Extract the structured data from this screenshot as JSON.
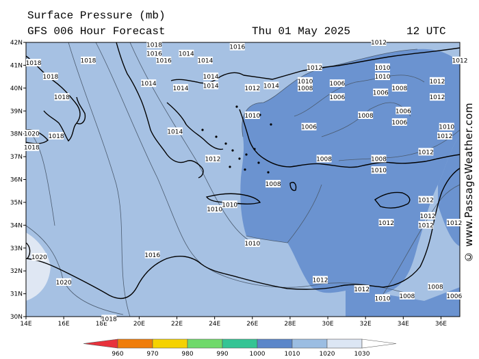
{
  "header": {
    "title": "Surface Pressure (mb)",
    "model": "GFS 006 Hour Forecast",
    "date": "Thu 01 May 2025",
    "time": "12 UTC"
  },
  "watermark": "© www.PassageWeather.com",
  "map": {
    "lon_ticks": [
      "14E",
      "16E",
      "18E",
      "20E",
      "22E",
      "24E",
      "26E",
      "28E",
      "30E",
      "32E",
      "34E",
      "36E"
    ],
    "lat_ticks": [
      "42N",
      "41N",
      "40N",
      "39N",
      "38N",
      "37N",
      "36N",
      "35N",
      "34N",
      "33N",
      "32N",
      "31N",
      "30N"
    ],
    "isobar_labels": [
      {
        "text": "1018",
        "lon": 20.8,
        "lat": 41.9
      },
      {
        "text": "1016",
        "lon": 25.2,
        "lat": 41.8
      },
      {
        "text": "1014",
        "lon": 22.5,
        "lat": 41.5
      },
      {
        "text": "1016",
        "lon": 20.8,
        "lat": 41.5
      },
      {
        "text": "1016",
        "lon": 21.3,
        "lat": 41.2
      },
      {
        "text": "1018",
        "lon": 14.4,
        "lat": 41.1
      },
      {
        "text": "1018",
        "lon": 17.3,
        "lat": 41.2
      },
      {
        "text": "1014",
        "lon": 23.5,
        "lat": 41.2
      },
      {
        "text": "1018",
        "lon": 15.3,
        "lat": 40.5
      },
      {
        "text": "1014",
        "lon": 20.5,
        "lat": 40.2
      },
      {
        "text": "1014",
        "lon": 22.2,
        "lat": 40.0
      },
      {
        "text": "1014",
        "lon": 23.8,
        "lat": 40.5
      },
      {
        "text": "1014",
        "lon": 23.8,
        "lat": 40.1
      },
      {
        "text": "1012",
        "lon": 26.0,
        "lat": 40.0
      },
      {
        "text": "1014",
        "lon": 27.0,
        "lat": 40.1
      },
      {
        "text": "1012",
        "lon": 29.3,
        "lat": 40.9
      },
      {
        "text": "1012",
        "lon": 32.7,
        "lat": 42.0
      },
      {
        "text": "1010",
        "lon": 28.8,
        "lat": 40.3
      },
      {
        "text": "1008",
        "lon": 28.8,
        "lat": 40.0
      },
      {
        "text": "1006",
        "lon": 30.5,
        "lat": 40.2
      },
      {
        "text": "1010",
        "lon": 32.9,
        "lat": 40.9
      },
      {
        "text": "1010",
        "lon": 32.9,
        "lat": 40.5
      },
      {
        "text": "1008",
        "lon": 33.8,
        "lat": 40.0
      },
      {
        "text": "1006",
        "lon": 32.8,
        "lat": 39.8
      },
      {
        "text": "1012",
        "lon": 35.8,
        "lat": 40.3
      },
      {
        "text": "1012",
        "lon": 35.8,
        "lat": 39.6
      },
      {
        "text": "1012",
        "lon": 37.0,
        "lat": 41.2
      },
      {
        "text": "1018",
        "lon": 15.9,
        "lat": 39.6
      },
      {
        "text": "1006",
        "lon": 30.5,
        "lat": 39.6
      },
      {
        "text": "1008",
        "lon": 32.0,
        "lat": 38.8
      },
      {
        "text": "1006",
        "lon": 34.0,
        "lat": 39.0
      },
      {
        "text": "1006",
        "lon": 33.8,
        "lat": 38.5
      },
      {
        "text": "1010",
        "lon": 26.0,
        "lat": 38.8
      },
      {
        "text": "1006",
        "lon": 29.0,
        "lat": 38.3
      },
      {
        "text": "1010",
        "lon": 36.3,
        "lat": 38.3
      },
      {
        "text": "1012",
        "lon": 36.2,
        "lat": 37.9
      },
      {
        "text": "1020",
        "lon": 14.3,
        "lat": 38.0
      },
      {
        "text": "1018",
        "lon": 15.6,
        "lat": 37.9
      },
      {
        "text": "1014",
        "lon": 21.9,
        "lat": 38.1
      },
      {
        "text": "1018",
        "lon": 14.3,
        "lat": 37.4
      },
      {
        "text": "1012",
        "lon": 23.9,
        "lat": 36.9
      },
      {
        "text": "1008",
        "lon": 29.8,
        "lat": 36.9
      },
      {
        "text": "1008",
        "lon": 32.7,
        "lat": 36.9
      },
      {
        "text": "1012",
        "lon": 35.2,
        "lat": 37.2
      },
      {
        "text": "1010",
        "lon": 32.7,
        "lat": 36.4
      },
      {
        "text": "1008",
        "lon": 27.1,
        "lat": 35.8
      },
      {
        "text": "1012",
        "lon": 35.2,
        "lat": 35.1
      },
      {
        "text": "1010",
        "lon": 24.0,
        "lat": 34.7
      },
      {
        "text": "1010",
        "lon": 24.8,
        "lat": 34.9
      },
      {
        "text": "1012",
        "lon": 33.1,
        "lat": 34.1
      },
      {
        "text": "1012",
        "lon": 35.3,
        "lat": 34.4
      },
      {
        "text": "1012",
        "lon": 35.2,
        "lat": 34.0
      },
      {
        "text": "1012",
        "lon": 36.7,
        "lat": 34.1
      },
      {
        "text": "1010",
        "lon": 26.0,
        "lat": 33.2
      },
      {
        "text": "1016",
        "lon": 20.7,
        "lat": 32.7
      },
      {
        "text": "1020",
        "lon": 14.7,
        "lat": 32.6
      },
      {
        "text": "1020",
        "lon": 16.0,
        "lat": 31.5
      },
      {
        "text": "1012",
        "lon": 29.6,
        "lat": 31.6
      },
      {
        "text": "1012",
        "lon": 31.8,
        "lat": 31.2
      },
      {
        "text": "1010",
        "lon": 32.9,
        "lat": 30.8
      },
      {
        "text": "1008",
        "lon": 34.2,
        "lat": 30.9
      },
      {
        "text": "1008",
        "lon": 35.7,
        "lat": 31.3
      },
      {
        "text": "1006",
        "lon": 36.7,
        "lat": 30.9
      },
      {
        "text": "1018",
        "lon": 18.4,
        "lat": 29.9
      }
    ]
  },
  "legend": {
    "values": [
      "960",
      "970",
      "980",
      "990",
      "1000",
      "1010",
      "1020",
      "1030"
    ],
    "colors": [
      "#e8323c",
      "#f07d0a",
      "#f5d200",
      "#6fd96a",
      "#34c494",
      "#5b86c9",
      "#9bbde2",
      "#dce6f4"
    ]
  },
  "colors": {
    "low": "#6a92d0",
    "mid": "#9fbce0",
    "high": "#dfe7f3",
    "land_outline": "#000000"
  }
}
